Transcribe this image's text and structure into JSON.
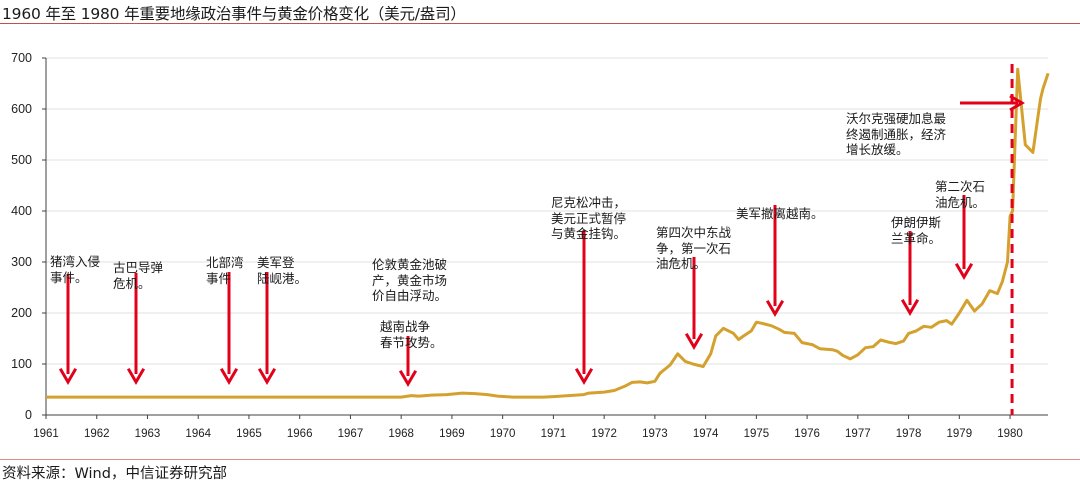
{
  "header": {
    "title": "1960 年至 1980 年重要地缘政治事件与黄金价格变化（美元/盎司）"
  },
  "footer": {
    "source": "资料来源：Wind，中信证券研究部"
  },
  "colors": {
    "line": "#D4A12E",
    "arrow": "#E3001B",
    "grid": "#E0E0E0",
    "axis": "#404040",
    "rule": "#C0504D"
  },
  "chart_data": {
    "type": "line",
    "title": "1960 年至 1980 年重要地缘政治事件与黄金价格变化（美元/盎司）",
    "xlabel": "",
    "ylabel": "美元/盎司",
    "xlim": [
      1961,
      1980.75
    ],
    "ylim": [
      0,
      700
    ],
    "grid": true,
    "legend": "none",
    "x_ticks": [
      "1961",
      "1962",
      "1963",
      "1964",
      "1965",
      "1966",
      "1967",
      "1968",
      "1969",
      "1970",
      "1971",
      "1972",
      "1973",
      "1974",
      "1975",
      "1976",
      "1977",
      "1978",
      "1979",
      "1980"
    ],
    "y_ticks": [
      "0",
      "100",
      "200",
      "300",
      "400",
      "500",
      "600",
      "700"
    ],
    "series": [
      {
        "name": "黄金价格",
        "x": [
          1961.0,
          1962.0,
          1963.0,
          1964.0,
          1965.0,
          1966.0,
          1967.0,
          1968.0,
          1968.2,
          1968.35,
          1968.6,
          1968.9,
          1969.2,
          1969.45,
          1969.7,
          1969.9,
          1970.2,
          1970.5,
          1970.8,
          1971.0,
          1971.3,
          1971.6,
          1971.7,
          1972.0,
          1972.2,
          1972.4,
          1972.55,
          1972.7,
          1972.85,
          1973.0,
          1973.1,
          1973.3,
          1973.45,
          1973.6,
          1973.75,
          1973.95,
          1974.1,
          1974.2,
          1974.35,
          1974.55,
          1974.65,
          1974.75,
          1974.9,
          1975.0,
          1975.1,
          1975.3,
          1975.45,
          1975.55,
          1975.75,
          1975.9,
          1976.1,
          1976.25,
          1976.5,
          1976.6,
          1976.7,
          1976.85,
          1977.0,
          1977.15,
          1977.3,
          1977.45,
          1977.6,
          1977.75,
          1977.9,
          1978.0,
          1978.15,
          1978.3,
          1978.45,
          1978.6,
          1978.75,
          1978.85,
          1979.0,
          1979.15,
          1979.3,
          1979.45,
          1979.6,
          1979.75,
          1979.85,
          1979.95,
          1980.0,
          1980.05,
          1980.15,
          1980.3,
          1980.45,
          1980.6,
          1980.65,
          1980.75
        ],
        "values": [
          35,
          35,
          35,
          35,
          35,
          35,
          35,
          35,
          38,
          37,
          39,
          40,
          43,
          42,
          40,
          37,
          35,
          35,
          35,
          36,
          38,
          40,
          43,
          45,
          48,
          56,
          64,
          65,
          63,
          66,
          82,
          98,
          120,
          105,
          100,
          95,
          120,
          155,
          170,
          160,
          148,
          155,
          165,
          182,
          180,
          175,
          168,
          162,
          160,
          142,
          138,
          130,
          128,
          125,
          117,
          110,
          118,
          132,
          134,
          147,
          143,
          140,
          145,
          160,
          165,
          174,
          172,
          182,
          185,
          178,
          200,
          225,
          204,
          218,
          244,
          238,
          262,
          300,
          390,
          400,
          678,
          530,
          515,
          620,
          640,
          670
        ]
      }
    ],
    "annotations": [
      {
        "text": "猪湾入侵事件。",
        "x": 1961.45,
        "arrow": "down"
      },
      {
        "text": "古巴导弹危机。",
        "x": 1962.8,
        "arrow": "down"
      },
      {
        "text": "北部湾事件",
        "x": 1964.6,
        "arrow": "down"
      },
      {
        "text": "美军登陆岘港。",
        "x": 1965.35,
        "arrow": "down"
      },
      {
        "text": "伦敦黄金池破产，黄金市场价自由浮动。越南战争春节攻势。",
        "x": 1968.15,
        "arrow": "down"
      },
      {
        "text": "尼克松冲击，美元正式暂停与黄金挂钩。",
        "x": 1971.65,
        "arrow": "down"
      },
      {
        "text": "第四次中东战争，第一次石油危机。",
        "x": 1973.8,
        "arrow": "down"
      },
      {
        "text": "美军撤离越南。",
        "x": 1975.35,
        "arrow": "down"
      },
      {
        "text": "伊朗伊斯兰革命。",
        "x": 1978.05,
        "arrow": "down"
      },
      {
        "text": "第二次石油危机。",
        "x": 1979.1,
        "arrow": "down"
      },
      {
        "text": "沃尔克强硬加息最终遏制通胀，经济增长放缓。",
        "x": 1980.0,
        "arrow": "right"
      }
    ],
    "vertical_marker": {
      "x": 1980.0,
      "style": "dashed",
      "color": "#E3001B"
    }
  },
  "annotations": {
    "pig_bay": [
      "猪湾入侵",
      "事件。"
    ],
    "cuba": [
      "古巴导弹",
      "危机。"
    ],
    "tonkin": [
      "北部湾",
      "事件"
    ],
    "danang": [
      "美军登",
      "陆岘港。"
    ],
    "london": [
      "伦敦黄金池破",
      "产，黄金市场",
      "价自由浮动。"
    ],
    "tet": [
      "越南战争",
      "春节攻势。"
    ],
    "nixon": [
      "尼克松冲击，",
      "美元正式暂停",
      "与黄金挂钩。"
    ],
    "yomkippur": [
      "第四次中东战",
      "争，第一次石",
      "油危机。"
    ],
    "withdraw": [
      "美军撤离越南。"
    ],
    "iran": [
      "伊朗伊斯",
      "兰革命。"
    ],
    "oil2": [
      "第二次石",
      "油危机。"
    ],
    "volcker": [
      "沃尔克强硬加息最",
      "终遏制通胀，经济",
      "增长放缓。"
    ]
  }
}
